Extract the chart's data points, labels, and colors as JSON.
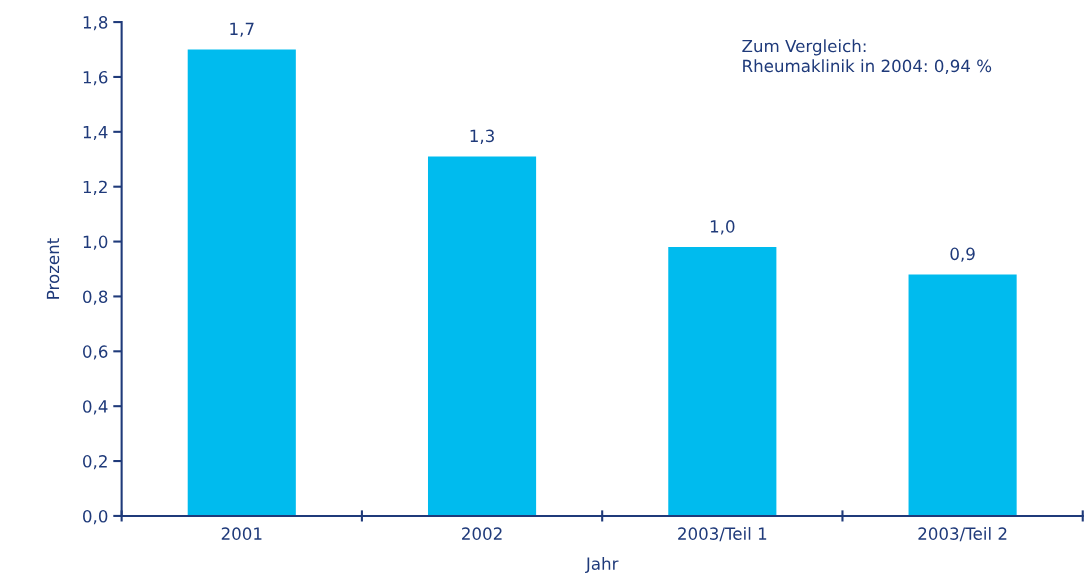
{
  "chart_data": {
    "type": "bar",
    "xlabel": "Jahr",
    "ylabel": "Prozent",
    "categories": [
      "2001",
      "2002",
      "2003/Teil 1",
      "2003/Teil 2"
    ],
    "values": [
      1.7,
      1.31,
      0.98,
      0.88
    ],
    "value_labels": [
      "1,7",
      "1,3",
      "1,0",
      "0,9"
    ],
    "color": "#00bbee",
    "ylim": [
      0,
      1.8
    ],
    "yticks": [
      {
        "value": 0,
        "label": "0,0"
      },
      {
        "value": 0.2,
        "label": "0,2"
      },
      {
        "value": 0.4,
        "label": "0,4"
      },
      {
        "value": 0.6,
        "label": "0,6"
      },
      {
        "value": 0.8,
        "label": "0,8"
      },
      {
        "value": 1.0,
        "label": "1,0"
      },
      {
        "value": 1.2,
        "label": "1,2"
      },
      {
        "value": 1.4,
        "label": "1,4"
      },
      {
        "value": 1.6,
        "label": "1,6"
      },
      {
        "value": 1.8,
        "label": "1,8"
      }
    ],
    "annotations": [
      "Zum Vergleich:\nRheumaklinik in 2004: 0,94 %"
    ],
    "grid": false,
    "legend": false
  }
}
